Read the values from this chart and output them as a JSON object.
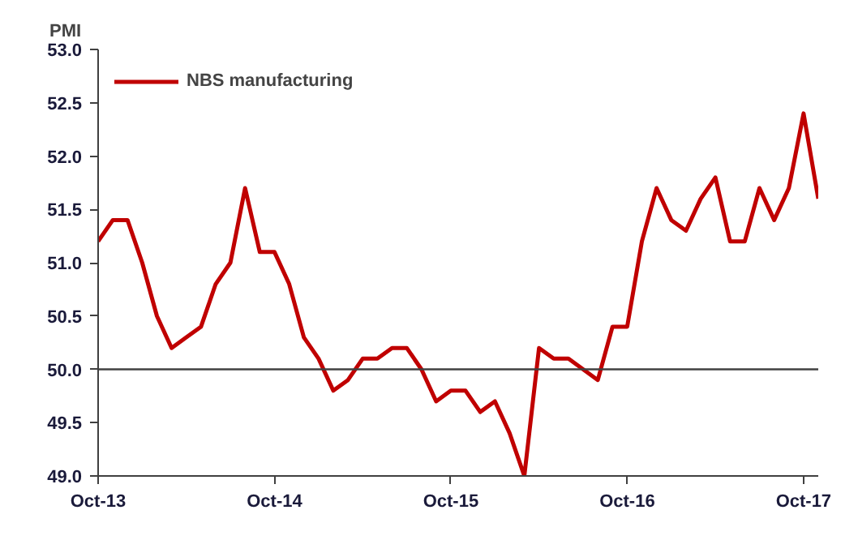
{
  "chart_data": {
    "type": "line",
    "ylabel": "PMI",
    "categories": [
      "Oct-13",
      null,
      null,
      null,
      null,
      null,
      null,
      null,
      null,
      null,
      null,
      null,
      "Oct-14",
      null,
      null,
      null,
      null,
      null,
      null,
      null,
      null,
      null,
      null,
      null,
      "Oct-15",
      null,
      null,
      null,
      null,
      null,
      null,
      null,
      null,
      null,
      null,
      null,
      "Oct-16",
      null,
      null,
      null,
      null,
      null,
      null,
      null,
      null,
      null,
      null,
      null,
      "Oct-17",
      null
    ],
    "series": [
      {
        "name": "NBS manufacturing",
        "color": "#c00000",
        "values": [
          51.2,
          51.4,
          51.4,
          51.0,
          50.5,
          50.2,
          50.3,
          50.4,
          50.8,
          51.0,
          51.7,
          51.1,
          51.1,
          50.8,
          50.3,
          50.1,
          49.8,
          49.9,
          50.1,
          50.1,
          50.2,
          50.2,
          50.0,
          49.7,
          49.8,
          49.8,
          49.6,
          49.7,
          49.4,
          49.0,
          50.2,
          50.1,
          50.1,
          50.0,
          49.9,
          50.4,
          50.4,
          51.2,
          51.7,
          51.4,
          51.3,
          51.6,
          51.8,
          51.2,
          51.2,
          51.7,
          51.4,
          51.7,
          52.4,
          51.6
        ]
      }
    ],
    "ylim": [
      49.0,
      53.0
    ],
    "yticks": [
      {
        "value": 49.0,
        "label": "49.0"
      },
      {
        "value": 49.5,
        "label": "49.5"
      },
      {
        "value": 50.0,
        "label": "50.0"
      },
      {
        "value": 50.5,
        "label": "50.5"
      },
      {
        "value": 51.0,
        "label": "51.0"
      },
      {
        "value": 51.5,
        "label": "51.5"
      },
      {
        "value": 52.0,
        "label": "52.0"
      },
      {
        "value": 52.5,
        "label": "52.5"
      },
      {
        "value": 53.0,
        "label": "53.0"
      }
    ],
    "ref_lines": [
      {
        "axis": "y",
        "value": 50.0,
        "color": "#404040"
      }
    ],
    "legend": "top left",
    "grid": false,
    "marker": "none",
    "line_style": "solid"
  }
}
